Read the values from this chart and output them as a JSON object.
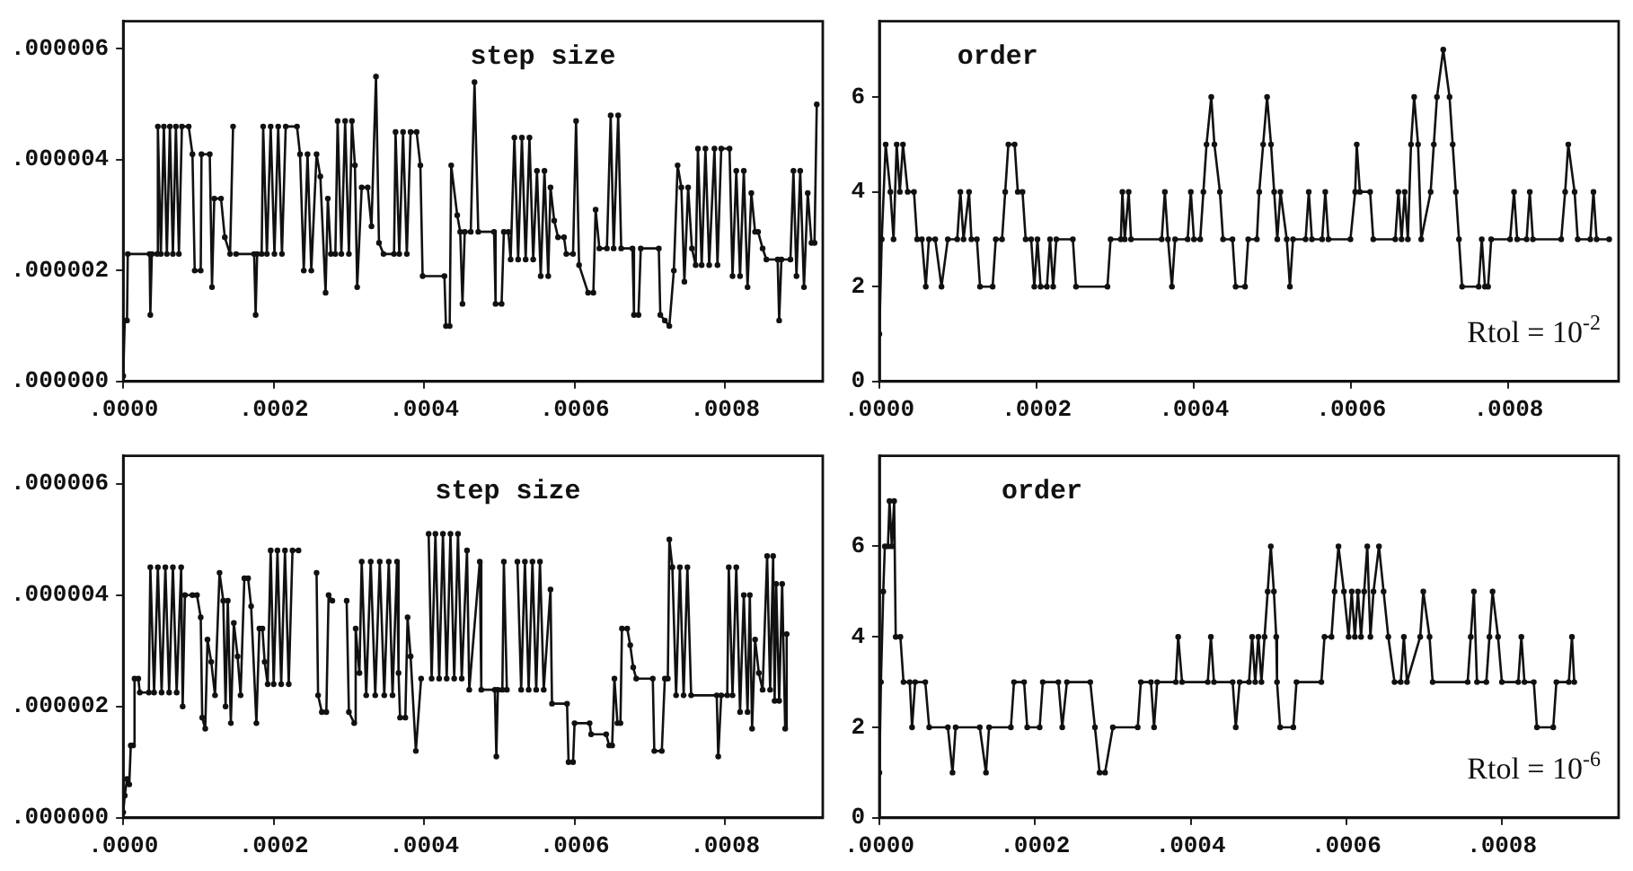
{
  "chart_data": [
    {
      "type": "line",
      "title": "step size",
      "color": "#111111",
      "marker": "circle",
      "line_style": "solid",
      "xlim": [
        0,
        0.00093
      ],
      "xticks": [
        {
          "value": 0,
          "label": ".0000"
        },
        {
          "value": 0.0002,
          "label": ".0002"
        },
        {
          "value": 0.0004,
          "label": ".0004"
        },
        {
          "value": 0.0006,
          "label": ".0006"
        },
        {
          "value": 0.0008,
          "label": ".0008"
        }
      ],
      "ylim": [
        0,
        6.5e-06
      ],
      "yticks": [
        {
          "value": 0,
          "label": ".000000"
        },
        {
          "value": 2e-06,
          "label": ".000002"
        },
        {
          "value": 4e-06,
          "label": ".000004"
        },
        {
          "value": 6e-06,
          "label": ".000006"
        }
      ],
      "x": [
        0.0,
        2e-06,
        5e-06,
        6e-06,
        3.5e-05,
        3.6e-05,
        3.8e-05,
        4.5e-05,
        4.6e-05,
        5e-05,
        5.4e-05,
        5.8e-05,
        6.2e-05,
        6.6e-05,
        7e-05,
        7.4e-05,
        7.8e-05,
        8.7e-05,
        9.2e-05,
        9.5e-05,
        0.000103,
        0.000104,
        0.000115,
        0.000118,
        0.000121,
        0.00013,
        0.000135,
        0.000142,
        0.000146,
        0.000147,
        0.00015,
        0.000174,
        0.000176,
        0.000178,
        0.000184,
        0.000186,
        0.000191,
        0.000196,
        0.000201,
        0.000206,
        0.000211,
        0.000216,
        0.000231,
        0.000235,
        0.00024,
        0.000245,
        0.00025,
        0.000257,
        0.000262,
        0.000269,
        0.000272,
        0.000276,
        0.000282,
        0.000285,
        0.00029,
        0.000295,
        0.0003,
        0.000304,
        0.000308,
        0.000311,
        0.000317,
        0.000325,
        0.00033,
        0.000336,
        0.00034,
        0.000346,
        0.00036,
        0.000362,
        0.000367,
        0.000372,
        0.000377,
        0.000382,
        0.00039,
        0.000395,
        0.000398,
        0.000427,
        0.000429,
        0.000434,
        0.000436,
        0.000444,
        0.000448,
        0.000451,
        0.000454,
        0.000462,
        0.000467,
        0.000472,
        0.000493,
        0.000495,
        0.000503,
        0.000506,
        0.000512,
        0.000515,
        0.00052,
        0.000525,
        0.00053,
        0.000535,
        0.00054,
        0.000545,
        0.00055,
        0.000555,
        0.00056,
        0.000565,
        0.000568,
        0.000573,
        0.000578,
        0.000586,
        0.000589,
        0.000598,
        0.000602,
        0.000606,
        0.000618,
        0.000625,
        0.000628,
        0.000633,
        0.000643,
        0.000648,
        0.000652,
        0.000658,
        0.000662,
        0.000677,
        0.000679,
        0.000685,
        0.000688,
        0.000712,
        0.000714,
        0.00072,
        0.000726,
        0.000732,
        0.000737,
        0.000742,
        0.000746,
        0.000751,
        0.000756,
        0.000761,
        0.000764,
        0.000769,
        0.000774,
        0.000779,
        0.000786,
        0.00079,
        0.000795,
        0.000806,
        0.00081,
        0.000815,
        0.00082,
        0.000825,
        0.00083,
        0.000835,
        0.00084,
        0.000844,
        0.00085,
        0.000855,
        0.00087,
        0.000872,
        0.000875,
        0.000887,
        0.000891,
        0.000895,
        0.0009,
        0.000905,
        0.00091,
        0.000915,
        0.000919,
        0.000922
      ],
      "values": [
        1e-07,
        1.1e-06,
        1.1e-06,
        2.3e-06,
        2.3e-06,
        1.2e-06,
        2.3e-06,
        2.3e-06,
        4.6e-06,
        2.3e-06,
        4.6e-06,
        2.3e-06,
        4.6e-06,
        2.3e-06,
        4.6e-06,
        2.3e-06,
        4.6e-06,
        4.6e-06,
        4.1e-06,
        2e-06,
        2e-06,
        4.1e-06,
        4.1e-06,
        1.7e-06,
        3.3e-06,
        3.3e-06,
        2.6e-06,
        2.3e-06,
        4.6e-06,
        null,
        2.3e-06,
        2.3e-06,
        1.2e-06,
        2.3e-06,
        2.3e-06,
        4.6e-06,
        2.3e-06,
        4.6e-06,
        2.3e-06,
        4.6e-06,
        2.3e-06,
        4.6e-06,
        4.6e-06,
        4.1e-06,
        2e-06,
        4.1e-06,
        2e-06,
        4.1e-06,
        3.7e-06,
        1.6e-06,
        3.3e-06,
        2.3e-06,
        2.3e-06,
        4.7e-06,
        2.3e-06,
        4.7e-06,
        2.3e-06,
        4.7e-06,
        3.9e-06,
        1.7e-06,
        3.5e-06,
        3.5e-06,
        2.8e-06,
        5.5e-06,
        2.5e-06,
        2.3e-06,
        2.3e-06,
        4.5e-06,
        2.3e-06,
        4.5e-06,
        2.3e-06,
        4.5e-06,
        4.5e-06,
        3.9e-06,
        1.9e-06,
        1.9e-06,
        1e-06,
        1e-06,
        3.9e-06,
        3e-06,
        2.7e-06,
        1.4e-06,
        2.7e-06,
        2.7e-06,
        5.4e-06,
        2.7e-06,
        2.7e-06,
        1.4e-06,
        1.4e-06,
        2.7e-06,
        2.7e-06,
        2.2e-06,
        4.4e-06,
        2.2e-06,
        4.4e-06,
        2.2e-06,
        4.4e-06,
        2.2e-06,
        3.8e-06,
        1.9e-06,
        3.8e-06,
        1.9e-06,
        3.5e-06,
        2.9e-06,
        2.6e-06,
        2.6e-06,
        2.3e-06,
        2.3e-06,
        4.7e-06,
        2.1e-06,
        1.6e-06,
        1.6e-06,
        3.1e-06,
        2.4e-06,
        2.4e-06,
        4.8e-06,
        2.4e-06,
        4.8e-06,
        2.4e-06,
        2.4e-06,
        1.2e-06,
        1.2e-06,
        2.4e-06,
        2.4e-06,
        1.2e-06,
        1.1e-06,
        1e-06,
        2e-06,
        3.9e-06,
        3.5e-06,
        1.8e-06,
        3.5e-06,
        2.4e-06,
        2.1e-06,
        4.2e-06,
        2.1e-06,
        4.2e-06,
        2.1e-06,
        4.2e-06,
        2.1e-06,
        4.2e-06,
        4.2e-06,
        1.9e-06,
        3.8e-06,
        1.9e-06,
        3.8e-06,
        1.7e-06,
        3.4e-06,
        2.7e-06,
        2.7e-06,
        2.4e-06,
        2.2e-06,
        2.2e-06,
        1.1e-06,
        2.2e-06,
        2.2e-06,
        3.8e-06,
        1.9e-06,
        3.8e-06,
        1.7e-06,
        3.4e-06,
        2.5e-06,
        2.5e-06,
        5e-06
      ]
    },
    {
      "type": "line",
      "title": "order",
      "color": "#111111",
      "marker": "circle",
      "line_style": "solid",
      "annotations": [
        "Rtol = 10$^{-2}$"
      ],
      "xlim": [
        0,
        0.00094
      ],
      "xticks": [
        {
          "value": 0,
          "label": ".0000"
        },
        {
          "value": 0.0002,
          "label": ".0002"
        },
        {
          "value": 0.0004,
          "label": ".0004"
        },
        {
          "value": 0.0006,
          "label": ".0006"
        },
        {
          "value": 0.0008,
          "label": ".0008"
        }
      ],
      "ylim": [
        0,
        7.6
      ],
      "yticks": [
        0,
        2,
        4,
        6
      ],
      "x": [
        0.0,
        3e-06,
        8e-06,
        1.4e-05,
        1.8e-05,
        2.2e-05,
        2.6e-05,
        3e-05,
        3.6e-05,
        4.4e-05,
        4.8e-05,
        5.4e-05,
        5.9e-05,
        6.3e-05,
        7.1e-05,
        7.9e-05,
        8.7e-05,
        9.9e-05,
        0.000103,
        0.000107,
        0.000114,
        0.000117,
        0.000124,
        0.000128,
        0.000144,
        0.000148,
        0.000156,
        0.00016,
        0.000164,
        0.000172,
        0.000176,
        0.000182,
        0.000186,
        0.000193,
        0.000197,
        0.000201,
        0.000205,
        0.000213,
        0.000217,
        0.000221,
        0.000225,
        0.000246,
        0.00025,
        0.00029,
        0.000294,
        0.000307,
        0.000309,
        0.000312,
        0.000317,
        0.00032,
        0.000359,
        0.000363,
        0.000367,
        0.000372,
        0.000376,
        0.000392,
        0.000396,
        0.0004,
        0.000408,
        0.000412,
        0.000416,
        0.000422,
        0.000426,
        0.000433,
        0.000437,
        0.000449,
        0.000453,
        0.000465,
        0.000469,
        0.00048,
        0.000483,
        0.000488,
        0.000493,
        0.000498,
        0.000502,
        0.000506,
        0.00051,
        0.000518,
        0.000522,
        0.000526,
        0.000542,
        0.000546,
        0.00055,
        0.000563,
        0.000567,
        0.000571,
        0.000599,
        0.000605,
        0.000607,
        0.000611,
        0.000624,
        0.000628,
        0.000656,
        0.00066,
        0.000664,
        0.000668,
        0.000672,
        0.000676,
        0.00068,
        0.000685,
        0.000689,
        0.000701,
        0.000705,
        0.000709,
        0.000717,
        0.000725,
        0.000729,
        0.000733,
        0.000737,
        0.000741,
        0.000762,
        0.000766,
        0.00077,
        0.000774,
        0.000778,
        0.000802,
        0.000807,
        0.000811,
        0.000823,
        0.000827,
        0.000831,
        0.000867,
        0.000872,
        0.000876,
        0.000884,
        0.000888,
        0.000904,
        0.000908,
        0.000912,
        0.000928
      ],
      "values": [
        1,
        3,
        5,
        4,
        3,
        5,
        4,
        5,
        4,
        4,
        3,
        3,
        2,
        3,
        3,
        2,
        3,
        3,
        4,
        3,
        4,
        3,
        3,
        2,
        2,
        3,
        3,
        4,
        5,
        5,
        4,
        4,
        3,
        3,
        2,
        3,
        2,
        2,
        3,
        2,
        3,
        3,
        2,
        2,
        3,
        3,
        4,
        3,
        4,
        3,
        3,
        4,
        3,
        2,
        3,
        3,
        4,
        3,
        3,
        4,
        5,
        6,
        5,
        4,
        3,
        3,
        2,
        2,
        3,
        3,
        4,
        5,
        6,
        5,
        4,
        3,
        4,
        3,
        2,
        3,
        3,
        4,
        3,
        3,
        4,
        3,
        3,
        4,
        5,
        4,
        4,
        3,
        3,
        4,
        3,
        4,
        3,
        5,
        6,
        5,
        3,
        4,
        5,
        6,
        7,
        6,
        5,
        4,
        3,
        2,
        2,
        3,
        2,
        2,
        3,
        3,
        4,
        3,
        3,
        4,
        3,
        3,
        4,
        5,
        4,
        3,
        3,
        4,
        3,
        3
      ]
    },
    {
      "type": "line",
      "title": "step size",
      "color": "#111111",
      "marker": "circle",
      "line_style": "solid",
      "xlim": [
        0,
        0.00093
      ],
      "xticks": [
        {
          "value": 0,
          "label": ".0000"
        },
        {
          "value": 0.0002,
          "label": ".0002"
        },
        {
          "value": 0.0004,
          "label": ".0004"
        },
        {
          "value": 0.0006,
          "label": ".0006"
        },
        {
          "value": 0.0008,
          "label": ".0008"
        }
      ],
      "ylim": [
        0,
        6.5e-06
      ],
      "yticks": [
        {
          "value": 0,
          "label": ".000000"
        },
        {
          "value": 2e-06,
          "label": ".000002"
        },
        {
          "value": 4e-06,
          "label": ".000004"
        },
        {
          "value": 6e-06,
          "label": ".000006"
        }
      ],
      "x": [
        0.0,
        2e-06,
        5e-06,
        8e-06,
        1e-05,
        1.3e-05,
        1.5e-05,
        2e-05,
        2.2e-05,
        3.4e-05,
        3.6e-05,
        4.1e-05,
        4.6e-05,
        5.1e-05,
        5.6e-05,
        6.1e-05,
        6.6e-05,
        7.1e-05,
        7.7e-05,
        7.9e-05,
        8.2e-05,
        9.2e-05,
        9.5e-05,
        9.8e-05,
        0.000103,
        0.000105,
        0.000109,
        0.000112,
        0.000117,
        0.000122,
        0.000128,
        0.000133,
        0.000136,
        0.000139,
        0.000143,
        0.000147,
        0.000152,
        0.000156,
        0.000161,
        0.000166,
        0.00017,
        0.000177,
        0.000181,
        0.000185,
        0.000188,
        0.000192,
        0.000196,
        0.0002,
        0.000205,
        0.00021,
        0.000215,
        0.00022,
        0.000225,
        0.000233,
        0.000241,
        0.000255,
        0.000257,
        0.000259,
        0.000264,
        0.00027,
        0.000273,
        0.000278,
        0.000282,
        0.000287,
        0.000297,
        0.0003,
        0.000307,
        0.000309,
        0.000312,
        0.000314,
        0.000317,
        0.000323,
        0.000329,
        0.000335,
        0.000341,
        0.000347,
        0.000353,
        0.000358,
        0.000364,
        0.000366,
        0.000368,
        0.000375,
        0.000378,
        0.000382,
        0.000389,
        0.000396,
        0.000403,
        0.000406,
        0.00041,
        0.000415,
        0.00042,
        0.000425,
        0.00043,
        0.000435,
        0.00044,
        0.000445,
        0.00045,
        0.000457,
        0.00046,
        0.000474,
        0.000476,
        0.000494,
        0.000496,
        0.000498,
        0.000504,
        0.000506,
        0.00051,
        0.00052,
        0.000524,
        0.000529,
        0.000534,
        0.000539,
        0.000544,
        0.000549,
        0.000554,
        0.000559,
        0.000568,
        0.00057,
        0.00059,
        0.000592,
        0.000598,
        0.0006,
        0.00062,
        0.000622,
        0.000642,
        0.000646,
        0.00065,
        0.000653,
        0.000657,
        0.000661,
        0.000663,
        0.00067,
        0.000674,
        0.000678,
        0.000682,
        0.000704,
        0.000706,
        0.000716,
        0.00072,
        0.000724,
        0.000726,
        0.00073,
        0.000735,
        0.00074,
        0.000745,
        0.00075,
        0.000755,
        0.000789,
        0.000791,
        0.000795,
        0.000803,
        0.000805,
        0.00081,
        0.000815,
        0.00082,
        0.000825,
        0.00083,
        0.000833,
        0.000836,
        0.00084,
        0.000845,
        0.00085,
        0.000856,
        0.00086,
        0.000864,
        0.000866,
        0.000868,
        0.000872,
        0.000876,
        0.00088,
        0.000882
      ],
      "values": [
        1e-07,
        4e-07,
        7e-07,
        6e-07,
        1.3e-06,
        1.3e-06,
        2.5e-06,
        2.5e-06,
        2.25e-06,
        2.25e-06,
        4.5e-06,
        2.25e-06,
        4.5e-06,
        2.25e-06,
        4.5e-06,
        2.25e-06,
        4.5e-06,
        2.25e-06,
        4.5e-06,
        2e-06,
        4e-06,
        4e-06,
        null,
        4e-06,
        3.6e-06,
        1.8e-06,
        1.6e-06,
        3.2e-06,
        2.8e-06,
        2.2e-06,
        4.4e-06,
        3.9e-06,
        2e-06,
        3.9e-06,
        1.7e-06,
        3.5e-06,
        2.9e-06,
        2.2e-06,
        4.3e-06,
        4.3e-06,
        3.8e-06,
        1.7e-06,
        3.4e-06,
        3.4e-06,
        2.8e-06,
        2.4e-06,
        4.8e-06,
        2.4e-06,
        4.8e-06,
        2.4e-06,
        4.8e-06,
        2.4e-06,
        4.8e-06,
        4.8e-06,
        null,
        null,
        4.4e-06,
        2.2e-06,
        1.9e-06,
        1.9e-06,
        4e-06,
        3.9e-06,
        null,
        null,
        3.9e-06,
        1.9e-06,
        1.7e-06,
        3.4e-06,
        2.9e-06,
        2.6e-06,
        4.6e-06,
        2.2e-06,
        4.6e-06,
        2.2e-06,
        4.6e-06,
        2.2e-06,
        4.6e-06,
        2.2e-06,
        4.6e-06,
        2.6e-06,
        1.8e-06,
        1.8e-06,
        3.6e-06,
        2.9e-06,
        1.2e-06,
        2.5e-06,
        null,
        5.1e-06,
        2.5e-06,
        5.1e-06,
        2.5e-06,
        5.1e-06,
        2.5e-06,
        5.1e-06,
        2.5e-06,
        5.1e-06,
        2.5e-06,
        4.8e-06,
        2.3e-06,
        4.6e-06,
        2.3e-06,
        2.3e-06,
        1.1e-06,
        2.3e-06,
        2.3e-06,
        4.6e-06,
        2.3e-06,
        null,
        4.6e-06,
        2.3e-06,
        4.6e-06,
        2.3e-06,
        4.6e-06,
        2.3e-06,
        4.6e-06,
        2.3e-06,
        4.1e-06,
        2.05e-06,
        2.05e-06,
        1e-06,
        1e-06,
        1.7e-06,
        1.7e-06,
        1.5e-06,
        1.5e-06,
        1.3e-06,
        1.3e-06,
        2.5e-06,
        1.7e-06,
        1.7e-06,
        3.4e-06,
        3.4e-06,
        3.1e-06,
        2.7e-06,
        2.5e-06,
        2.5e-06,
        1.2e-06,
        1.2e-06,
        2.5e-06,
        2.5e-06,
        5e-06,
        4.5e-06,
        2.2e-06,
        4.5e-06,
        2.2e-06,
        4.5e-06,
        2.2e-06,
        2.2e-06,
        1.1e-06,
        2.2e-06,
        2.2e-06,
        4.5e-06,
        2.2e-06,
        4.5e-06,
        1.9e-06,
        4e-06,
        1.9e-06,
        4e-06,
        1.6e-06,
        3.2e-06,
        2.6e-06,
        2.3e-06,
        4.7e-06,
        2.3e-06,
        4.7e-06,
        2.1e-06,
        4.2e-06,
        2.1e-06,
        4.2e-06,
        1.6e-06,
        3.3e-06
      ]
    },
    {
      "type": "line",
      "title": "order",
      "color": "#111111",
      "marker": "circle",
      "line_style": "solid",
      "annotations": [
        "Rtol = 10$^{-6}$"
      ],
      "xlim": [
        0,
        0.00095
      ],
      "xticks": [
        {
          "value": 0,
          "label": ".0000"
        },
        {
          "value": 0.0002,
          "label": ".0002"
        },
        {
          "value": 0.0004,
          "label": ".0004"
        },
        {
          "value": 0.0006,
          "label": ".0006"
        },
        {
          "value": 0.0008,
          "label": ".0008"
        }
      ],
      "ylim": [
        0,
        8
      ],
      "yticks": [
        0,
        2,
        4,
        6
      ],
      "x": [
        0.0,
        2e-06,
        5e-06,
        7e-06,
        9e-06,
        1.1e-05,
        1.3e-05,
        1.6e-05,
        1.9e-05,
        2.1e-05,
        2.7e-05,
        3.1e-05,
        3.9e-05,
        4.2e-05,
        4.6e-05,
        5.9e-05,
        6.4e-05,
        8.8e-05,
        9.4e-05,
        9.8e-05,
        0.000129,
        0.000137,
        0.000141,
        0.000169,
        0.000173,
        0.000186,
        0.00019,
        0.000206,
        0.00021,
        0.00023,
        0.000235,
        0.000241,
        0.000271,
        0.000277,
        0.000283,
        0.00029,
        0.0003,
        0.000332,
        0.000336,
        0.000349,
        0.000353,
        0.000357,
        0.000381,
        0.000384,
        0.000389,
        0.000422,
        0.000426,
        0.00043,
        0.000454,
        0.000458,
        0.000463,
        0.000475,
        0.000479,
        0.000483,
        0.000487,
        0.000491,
        0.000495,
        0.000499,
        0.000503,
        0.000507,
        0.00051,
        0.000511,
        0.000515,
        0.000532,
        0.000536,
        0.000568,
        0.000572,
        0.000581,
        0.000585,
        0.00059,
        0.000597,
        0.000603,
        0.000607,
        0.000611,
        0.000615,
        0.000619,
        0.000623,
        0.000627,
        0.000631,
        0.000635,
        0.000642,
        0.000648,
        0.000654,
        0.000662,
        0.00067,
        0.000674,
        0.000678,
        0.000695,
        0.000699,
        0.000707,
        0.000711,
        0.000756,
        0.00076,
        0.000764,
        0.000768,
        0.00078,
        0.000784,
        0.000788,
        0.000795,
        0.0008,
        0.000821,
        0.000825,
        0.000829,
        0.000841,
        0.000845,
        0.000866,
        0.00087,
        0.000886,
        0.00089,
        0.000893
      ],
      "values": [
        1,
        3,
        5,
        6,
        null,
        6,
        7,
        6,
        7,
        4,
        4,
        3,
        3,
        2,
        3,
        3,
        2,
        2,
        1,
        2,
        2,
        1,
        2,
        2,
        3,
        3,
        2,
        2,
        3,
        3,
        2,
        3,
        3,
        2,
        1,
        1,
        2,
        2,
        3,
        3,
        2,
        3,
        3,
        4,
        3,
        3,
        4,
        3,
        3,
        2,
        3,
        3,
        4,
        3,
        4,
        3,
        4,
        5,
        6,
        5,
        4,
        3,
        2,
        2,
        3,
        3,
        4,
        4,
        5,
        6,
        5,
        4,
        5,
        4,
        5,
        4,
        5,
        6,
        4,
        5,
        6,
        5,
        4,
        3,
        3,
        4,
        3,
        4,
        5,
        4,
        3,
        3,
        4,
        5,
        3,
        3,
        4,
        5,
        4,
        3,
        3,
        4,
        3,
        3,
        2,
        2,
        3,
        3,
        4,
        3
      ]
    }
  ]
}
